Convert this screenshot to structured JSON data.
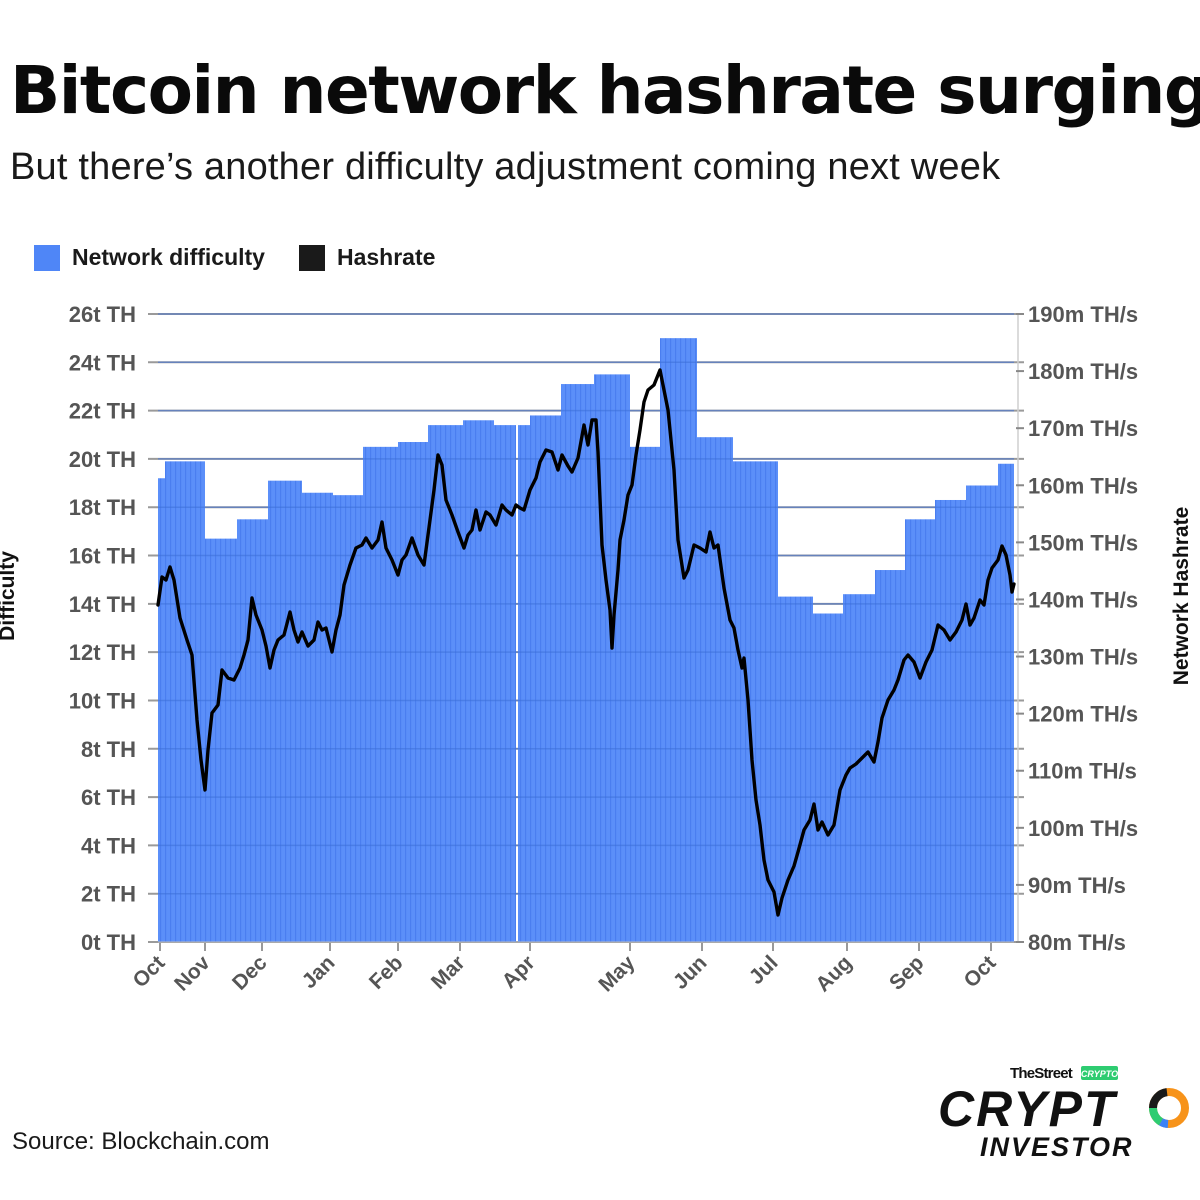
{
  "header": {
    "title": "Bitcoin network hashrate surging",
    "subtitle": "But there’s another difficulty adjustment coming next week"
  },
  "legend": {
    "items": [
      {
        "label": "Network difficulty",
        "color": "#4f86f7"
      },
      {
        "label": "Hashrate",
        "color": "#1a1a1a"
      }
    ]
  },
  "footer": {
    "source": "Source: Blockchain.com"
  },
  "logo": {
    "top_text": "TheStreet",
    "badge_text": "CRYPTO",
    "main_text": "CRYPT",
    "sub_text": "INVESTOR",
    "badge_color": "#2ecc71",
    "ring_colors": [
      "#f7931a",
      "#2ecc71",
      "#1a1a1a",
      "#3b82f6"
    ]
  },
  "colors": {
    "difficulty_fill": "#5b8ff9",
    "difficulty_stripe": "#4a7ef0",
    "hashrate_line": "#000000",
    "gridline": "#9a9a9a",
    "axis_text": "#555555"
  },
  "chart_data": {
    "type": "area+line",
    "title": "Bitcoin network hashrate surging",
    "subtitle": "But there’s another difficulty adjustment coming next week",
    "xlabel": "",
    "ylabel_left": "Difficulty",
    "ylabel_right": "Network Hashrate",
    "ylim_left": [
      0,
      26
    ],
    "ylim_right": [
      80,
      190
    ],
    "grid": true,
    "legend_position": "top-left",
    "x_ticks": [
      "Oct",
      "Nov",
      "Dec",
      "Jan",
      "Feb",
      "Mar",
      "Apr",
      "May",
      "Jun",
      "Jul",
      "Aug",
      "Sep",
      "Oct"
    ],
    "y_ticks_left": [
      "0t TH",
      "2t TH",
      "4t TH",
      "6t TH",
      "8t TH",
      "10t TH",
      "12t TH",
      "14t TH",
      "16t TH",
      "18t TH",
      "20t TH",
      "22t TH",
      "24t TH",
      "26t TH"
    ],
    "y_ticks_right": [
      "80m TH/s",
      "90m TH/s",
      "100m TH/s",
      "110m TH/s",
      "120m TH/s",
      "130m TH/s",
      "140m TH/s",
      "150m TH/s",
      "160m TH/s",
      "170m TH/s",
      "180m TH/s",
      "190m TH/s"
    ],
    "series": [
      {
        "name": "Network difficulty",
        "unit": "t TH",
        "kind": "step-area",
        "points": [
          {
            "x": "Oct (early)",
            "value": 19.2
          },
          {
            "x": "Oct (mid)",
            "value": 19.9
          },
          {
            "x": "Nov (early)",
            "value": 16.7
          },
          {
            "x": "Nov (mid)",
            "value": 17.5
          },
          {
            "x": "Dec (early)",
            "value": 19.1
          },
          {
            "x": "Dec (mid)",
            "value": 18.6
          },
          {
            "x": "Jan (early)",
            "value": 18.5
          },
          {
            "x": "Jan (mid)",
            "value": 20.5
          },
          {
            "x": "Feb (early)",
            "value": 20.7
          },
          {
            "x": "Feb (mid)",
            "value": 21.4
          },
          {
            "x": "Mar (early)",
            "value": 21.6
          },
          {
            "x": "Mar (mid)",
            "value": 21.4
          },
          {
            "x": "Mar (late)",
            "value": 21.4
          },
          {
            "x": "Apr (early)",
            "value": 21.8
          },
          {
            "x": "Apr (mid)",
            "value": 23.1
          },
          {
            "x": "Apr (late)",
            "value": 23.5
          },
          {
            "x": "May (early)",
            "value": 20.5
          },
          {
            "x": "May (mid)",
            "value": 25.0
          },
          {
            "x": "Jun (early)",
            "value": 20.9
          },
          {
            "x": "Jun (mid)",
            "value": 19.9
          },
          {
            "x": "Jul (early)",
            "value": 14.3
          },
          {
            "x": "Jul (mid)",
            "value": 13.6
          },
          {
            "x": "Aug (early)",
            "value": 14.4
          },
          {
            "x": "Aug (mid)",
            "value": 15.4
          },
          {
            "x": "Sep (early)",
            "value": 17.5
          },
          {
            "x": "Sep (mid)",
            "value": 18.3
          },
          {
            "x": "Sep (late)",
            "value": 18.9
          },
          {
            "x": "Oct (early)",
            "value": 19.8
          }
        ]
      },
      {
        "name": "Hashrate",
        "unit": "m TH/s",
        "kind": "line",
        "points": [
          {
            "x": "Oct",
            "value": 142
          },
          {
            "x": "Oct (mid)",
            "value": 145
          },
          {
            "x": "Oct (late)",
            "value": 133
          },
          {
            "x": "Nov (early)",
            "value": 107
          },
          {
            "x": "Nov (mid)",
            "value": 124
          },
          {
            "x": "Nov (late)",
            "value": 123
          },
          {
            "x": "Dec (early)",
            "value": 138
          },
          {
            "x": "Dec (mid)",
            "value": 131
          },
          {
            "x": "Dec (late)",
            "value": 134
          },
          {
            "x": "Jan (early)",
            "value": 131
          },
          {
            "x": "Jan (mid)",
            "value": 148
          },
          {
            "x": "Jan (late)",
            "value": 150
          },
          {
            "x": "Feb (early)",
            "value": 145
          },
          {
            "x": "Feb (mid)",
            "value": 162
          },
          {
            "x": "Feb (late)",
            "value": 148
          },
          {
            "x": "Mar (early)",
            "value": 154
          },
          {
            "x": "Mar (mid)",
            "value": 155
          },
          {
            "x": "Apr (early)",
            "value": 163
          },
          {
            "x": "Apr (mid)",
            "value": 161
          },
          {
            "x": "Apr (late)",
            "value": 173
          },
          {
            "x": "May (early)",
            "value": 129
          },
          {
            "x": "May (mid)",
            "value": 158
          },
          {
            "x": "May (late)",
            "value": 182
          },
          {
            "x": "Jun (early)",
            "value": 143
          },
          {
            "x": "Jun (mid)",
            "value": 150
          },
          {
            "x": "Jun (late)",
            "value": 132
          },
          {
            "x": "Jul (early)",
            "value": 91
          },
          {
            "x": "Jul (mid)",
            "value": 85
          },
          {
            "x": "Jul (late)",
            "value": 99
          },
          {
            "x": "Aug (early)",
            "value": 101
          },
          {
            "x": "Aug (mid)",
            "value": 111
          },
          {
            "x": "Aug (late)",
            "value": 118
          },
          {
            "x": "Sep (early)",
            "value": 129
          },
          {
            "x": "Sep (mid)",
            "value": 135
          },
          {
            "x": "Sep (late)",
            "value": 137
          },
          {
            "x": "Oct (early)",
            "value": 141
          },
          {
            "x": "Oct (mid)",
            "value": 149
          },
          {
            "x": "Oct (latest)",
            "value": 141
          }
        ]
      }
    ]
  }
}
